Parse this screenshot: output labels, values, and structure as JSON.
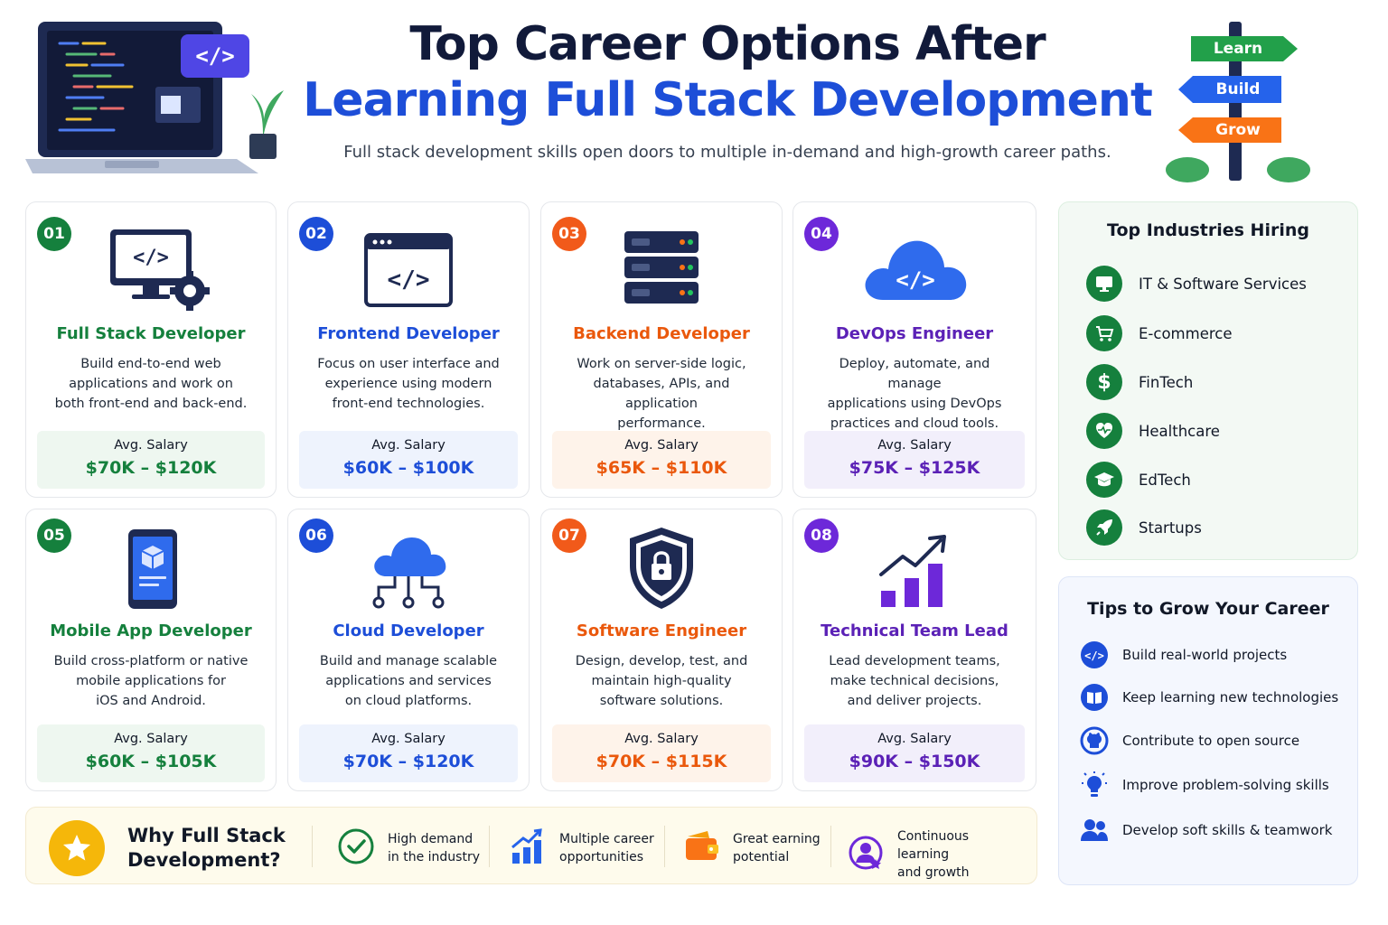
{
  "header": {
    "title_line1": "Top Career Options After",
    "title_line2": "Learning Full Stack Development",
    "subtitle": "Full stack development skills open doors to multiple in-demand and high-growth career paths.",
    "signposts": [
      "Learn",
      "Build",
      "Grow"
    ]
  },
  "salary_label": "Avg. Salary",
  "careers": [
    {
      "num": "01",
      "title": "Full Stack Developer",
      "desc": [
        "Build end-to-end web",
        "applications and work on",
        "both front-end and back-end."
      ],
      "salary": "$70K – $120K",
      "color": "green",
      "icon": "monitor-code-gear-icon"
    },
    {
      "num": "02",
      "title": "Frontend Developer",
      "desc": [
        "Focus on user interface and",
        "experience using modern",
        "front-end technologies."
      ],
      "salary": "$60K – $100K",
      "color": "blue",
      "icon": "browser-code-icon"
    },
    {
      "num": "03",
      "title": "Backend Developer",
      "desc": [
        "Work on server-side logic,",
        "databases, APIs, and application",
        "performance."
      ],
      "salary": "$65K – $110K",
      "color": "orange",
      "icon": "server-stack-icon"
    },
    {
      "num": "04",
      "title": "DevOps Engineer",
      "desc": [
        "Deploy, automate, and manage",
        "applications using DevOps",
        "practices and cloud tools."
      ],
      "salary": "$75K – $125K",
      "color": "purple",
      "icon": "cloud-code-icon"
    },
    {
      "num": "05",
      "title": "Mobile App Developer",
      "desc": [
        "Build cross-platform or native",
        "mobile applications for",
        "iOS and Android."
      ],
      "salary": "$60K – $105K",
      "color": "green",
      "icon": "smartphone-icon"
    },
    {
      "num": "06",
      "title": "Cloud Developer",
      "desc": [
        "Build and manage scalable",
        "applications and services",
        "on cloud platforms."
      ],
      "salary": "$70K – $120K",
      "color": "blue",
      "icon": "cloud-network-icon"
    },
    {
      "num": "07",
      "title": "Software Engineer",
      "desc": [
        "Design, develop, test, and",
        "maintain high-quality",
        "software solutions."
      ],
      "salary": "$70K – $115K",
      "color": "orange",
      "icon": "shield-lock-icon"
    },
    {
      "num": "08",
      "title": "Technical Team Lead",
      "desc": [
        "Lead development teams,",
        "make technical decisions,",
        "and deliver projects."
      ],
      "salary": "$90K – $150K",
      "color": "purple",
      "icon": "growth-chart-icon"
    }
  ],
  "industries": {
    "title": "Top Industries Hiring",
    "items": [
      {
        "label": "IT & Software Services",
        "icon": "monitor-icon"
      },
      {
        "label": "E-commerce",
        "icon": "cart-icon"
      },
      {
        "label": "FinTech",
        "icon": "dollar-icon"
      },
      {
        "label": "Healthcare",
        "icon": "heart-pulse-icon"
      },
      {
        "label": "EdTech",
        "icon": "graduation-cap-icon"
      },
      {
        "label": "Startups",
        "icon": "rocket-icon"
      }
    ]
  },
  "tips": {
    "title": "Tips to Grow Your Career",
    "items": [
      {
        "label": "Build real-world projects",
        "icon": "code-icon"
      },
      {
        "label": "Keep learning new technologies",
        "icon": "book-icon"
      },
      {
        "label": "Contribute to open source",
        "icon": "github-icon"
      },
      {
        "label": "Improve problem-solving skills",
        "icon": "lightbulb-icon"
      },
      {
        "label": "Develop soft skills & teamwork",
        "icon": "team-icon"
      }
    ]
  },
  "why": {
    "title_line1": "Why Full Stack",
    "title_line2": "Development?",
    "benefits": [
      {
        "line1": "High demand",
        "line2": "in the industry",
        "icon": "check-circle-icon"
      },
      {
        "line1": "Multiple career",
        "line2": "opportunities",
        "icon": "bar-growth-icon"
      },
      {
        "line1": "Great earning",
        "line2": "potential",
        "icon": "wallet-icon"
      },
      {
        "line1": "Continuous learning",
        "line2": "and growth",
        "icon": "learner-badge-icon"
      }
    ]
  },
  "colors": {
    "green": "#15803d",
    "blue": "#1d4ed8",
    "orange": "#ea580c",
    "purple": "#5b21b6",
    "navy": "#111a3a"
  }
}
